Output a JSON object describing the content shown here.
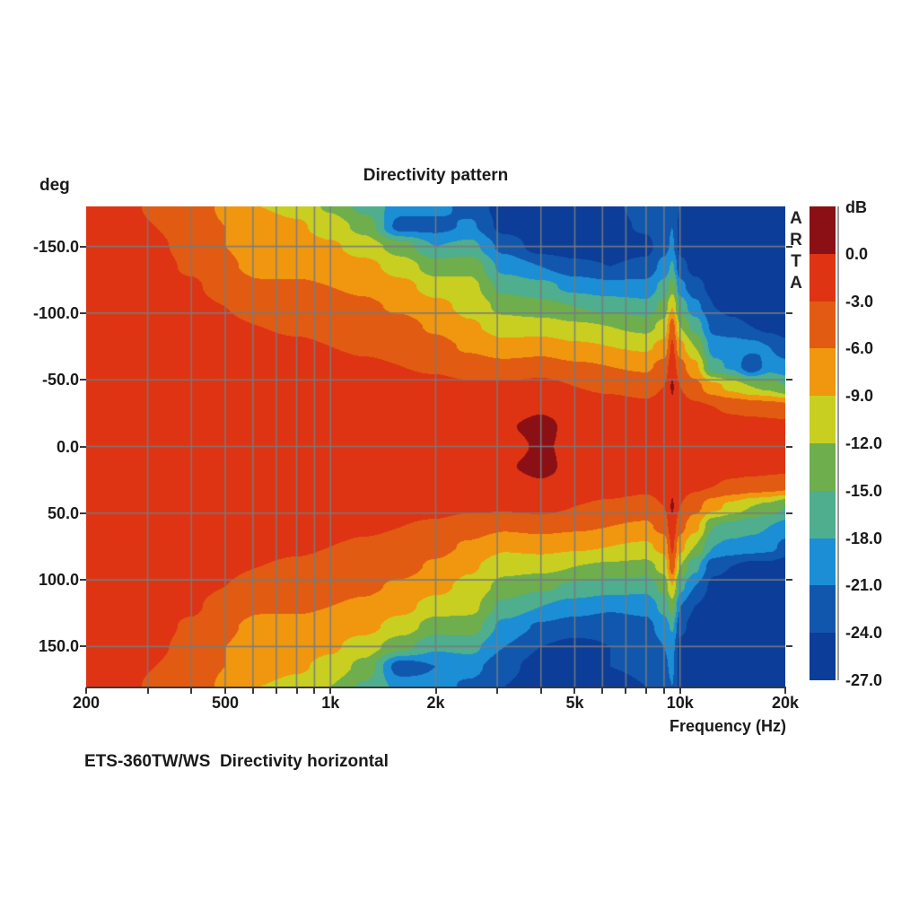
{
  "window": {
    "background": "#ffffff",
    "text_color": "#1a1a1a"
  },
  "chart": {
    "title": "Directivity pattern",
    "caption": "ETS-360TW/WS  Directivity horizontal",
    "watermark_letters": [
      "A",
      "R",
      "T",
      "A"
    ],
    "x_axis": {
      "title": "Frequency (Hz)",
      "scale": "log",
      "min_hz": 200,
      "max_hz": 20000,
      "tick_labels": [
        {
          "label": "200",
          "hz": 200
        },
        {
          "label": "500",
          "hz": 500
        },
        {
          "label": "1k",
          "hz": 1000
        },
        {
          "label": "2k",
          "hz": 2000
        },
        {
          "label": "5k",
          "hz": 5000
        },
        {
          "label": "10k",
          "hz": 10000
        },
        {
          "label": "20k",
          "hz": 20000
        }
      ]
    },
    "y_axis": {
      "unit": "deg",
      "min_deg": -180,
      "max_deg": 180,
      "ticks": [
        {
          "label": "-150.0",
          "deg": -150
        },
        {
          "label": "-100.0",
          "deg": -100
        },
        {
          "label": "-50.0",
          "deg": -50
        },
        {
          "label": "0.0",
          "deg": 0
        },
        {
          "label": "50.0",
          "deg": 50
        },
        {
          "label": "100.0",
          "deg": 100
        },
        {
          "label": "150.0",
          "deg": 150
        }
      ]
    },
    "colorbar": {
      "unit": "dB",
      "tick_labels": [
        "0.0",
        "-3.0",
        "-6.0",
        "-9.0",
        "-12.0",
        "-15.0",
        "-18.0",
        "-21.0",
        "-24.0",
        "-27.0"
      ]
    }
  },
  "chart_data": {
    "type": "heatmap",
    "title": "Directivity pattern",
    "xlabel": "Frequency (Hz)",
    "ylabel": "deg",
    "x_scale": "log",
    "xlim_hz": [
      200,
      20000
    ],
    "ylim_deg": [
      -180,
      180
    ],
    "levels_db": [
      0,
      -3,
      -6,
      -9,
      -12,
      -15,
      -18,
      -21,
      -24,
      -27
    ],
    "band_colors": [
      "#8b1016",
      "#de3413",
      "#e25b12",
      "#f0970f",
      "#c9cf20",
      "#6eae4d",
      "#4eae8d",
      "#1b8ed5",
      "#1157ae",
      "#0b3d99"
    ],
    "grid_color": "#787d80",
    "grid_freqs_hz": [
      300,
      400,
      500,
      600,
      700,
      800,
      900,
      1000,
      2000,
      3000,
      4000,
      5000,
      6000,
      7000,
      8000,
      9000,
      10000
    ],
    "grid_angles_deg": [
      -150,
      -100,
      -50,
      0,
      50,
      100,
      150
    ],
    "freqs_hz": [
      200,
      250,
      315,
      400,
      500,
      630,
      800,
      1000,
      1250,
      1600,
      2000,
      2500,
      3150,
      4000,
      5000,
      6300,
      8000,
      9000,
      9500,
      10000,
      11000,
      12500,
      14000,
      16000,
      18000,
      20000
    ],
    "angles_deg": [
      -180,
      -165,
      -150,
      -135,
      -120,
      -105,
      -90,
      -75,
      -60,
      -45,
      -30,
      -15,
      0,
      15,
      30,
      45,
      60,
      75,
      90,
      105,
      120,
      135,
      150,
      165,
      180
    ],
    "values_db": [
      [
        -1.5,
        -2,
        -3.5,
        -4.5,
        -6.5,
        -9,
        -10,
        -12.5,
        -16,
        -19.5,
        -20,
        -22,
        -25.5,
        -26,
        -26,
        -24.5,
        -23,
        -22,
        -21,
        -24,
        -26,
        -26,
        -26,
        -26,
        -26,
        -26
      ],
      [
        -1.5,
        -1.8,
        -3,
        -4.5,
        -6,
        -7.5,
        -8.5,
        -10.5,
        -13,
        -22.5,
        -22,
        -20.5,
        -25,
        -26,
        -26,
        -25,
        -23.5,
        -22,
        -21,
        -25,
        -26,
        -26,
        -26,
        -26,
        -26,
        -26
      ],
      [
        -1.5,
        -1.6,
        -2.5,
        -4,
        -6,
        -7.5,
        -7.5,
        -8.5,
        -10.5,
        -13.5,
        -18,
        -17,
        -22,
        -25.5,
        -26,
        -26,
        -25,
        -22,
        -20.5,
        -25,
        -26,
        -26,
        -26,
        -26,
        -26,
        -26
      ],
      [
        -1.5,
        -1.5,
        -2,
        -3.5,
        -5.5,
        -7,
        -7,
        -7.5,
        -8,
        -10.5,
        -13.5,
        -13,
        -19,
        -21,
        -23,
        -24,
        -23,
        -20,
        -17.5,
        -23,
        -25,
        -26,
        -26,
        -26,
        -26,
        -26
      ],
      [
        -1.5,
        -1.5,
        -1.8,
        -2.5,
        -4.5,
        -5.5,
        -5.5,
        -6,
        -6.5,
        -8,
        -10.5,
        -11,
        -16,
        -17,
        -19,
        -20,
        -20,
        -17,
        -13.5,
        -20,
        -23,
        -25,
        -26,
        -26,
        -26,
        -26
      ],
      [
        -1.5,
        -1.5,
        -1.5,
        -2,
        -3,
        -4.5,
        -4.5,
        -5,
        -5.5,
        -6.5,
        -8,
        -10,
        -13,
        -14,
        -15,
        -16,
        -17,
        -14,
        -9,
        -16,
        -20,
        -24,
        -25,
        -26,
        -26,
        -26
      ],
      [
        -1.5,
        -1.5,
        -1.5,
        -1.8,
        -2.5,
        -3,
        -3.5,
        -4,
        -4.5,
        -5,
        -6.5,
        -8.5,
        -10.5,
        -10.5,
        -11.5,
        -12,
        -13,
        -11,
        -4.5,
        -12,
        -16,
        -22,
        -23,
        -24,
        -25,
        -25.5
      ],
      [
        -1.5,
        -1.5,
        -1.5,
        -1.5,
        -2,
        -2.2,
        -2.5,
        -3,
        -3.5,
        -4,
        -5,
        -6.5,
        -8,
        -7.5,
        -8.5,
        -9,
        -9.5,
        -8,
        -2.5,
        -8,
        -12,
        -19.5,
        -19.5,
        -20,
        -21,
        -23
      ],
      [
        -1.5,
        -1.5,
        -1.5,
        -1.5,
        -1.5,
        -1.8,
        -2,
        -2,
        -2.5,
        -3,
        -3.5,
        -4.5,
        -5,
        -4.5,
        -5.5,
        -6,
        -6.5,
        -5,
        -1,
        -5,
        -8,
        -17,
        -18.5,
        -23.5,
        -19.5,
        -20
      ],
      [
        -1.5,
        -1.5,
        -1.5,
        -1.5,
        -1.5,
        -1.5,
        -1.5,
        -1.5,
        -1.8,
        -2,
        -2,
        -2.5,
        -2.5,
        -2,
        -3,
        -3.5,
        -4,
        -3,
        0.3,
        -3,
        -5,
        -8,
        -10,
        -12,
        -13,
        -15
      ],
      [
        -1.5,
        -1.5,
        -1.5,
        -1.5,
        -1.5,
        -1.5,
        -1.5,
        -1.5,
        -1.5,
        -1.5,
        -1.5,
        -1.8,
        -1.5,
        -0.5,
        -1.5,
        -2,
        -2.5,
        -2,
        -0.5,
        -2,
        -2.5,
        -3,
        -3.5,
        -4,
        -4.5,
        -5
      ],
      [
        -1.5,
        -1.5,
        -1.5,
        -1.5,
        -1.5,
        -1.5,
        -1.5,
        -1.5,
        -1.5,
        -1.5,
        -1.5,
        -1.5,
        -0.3,
        0.9,
        -1,
        -1.5,
        -1.5,
        -1.5,
        -1,
        -1.5,
        -1.5,
        -1.8,
        -2,
        -2,
        -2,
        -2.2
      ],
      [
        -1.5,
        -1.5,
        -1.5,
        -1.5,
        -1.5,
        -1.5,
        -1.5,
        -1.5,
        -1.5,
        -1.5,
        -1.5,
        -1.5,
        -1.2,
        0.4,
        -0.8,
        -1.2,
        -1.2,
        -1.2,
        -0.8,
        -1.2,
        -1.2,
        -1.5,
        -1.5,
        -1.5,
        -1.5,
        -1.8
      ],
      [
        -1.5,
        -1.5,
        -1.5,
        -1.5,
        -1.5,
        -1.5,
        -1.5,
        -1.5,
        -1.5,
        -1.5,
        -1.5,
        -1.5,
        -0.3,
        0.9,
        -1,
        -1.5,
        -1.5,
        -1.5,
        -1,
        -1.5,
        -1.5,
        -1.8,
        -2,
        -2,
        -2,
        -2.2
      ],
      [
        -1.5,
        -1.5,
        -1.5,
        -1.5,
        -1.5,
        -1.5,
        -1.5,
        -1.5,
        -1.5,
        -1.5,
        -1.5,
        -1.8,
        -1.5,
        -0.5,
        -1.5,
        -2,
        -2.5,
        -2,
        -0.5,
        -2,
        -2.5,
        -3,
        -3.5,
        -4,
        -4.5,
        -5
      ],
      [
        -1.5,
        -1.5,
        -1.5,
        -1.5,
        -1.5,
        -1.5,
        -1.5,
        -1.5,
        -1.8,
        -2,
        -2,
        -2.5,
        -2.5,
        -2,
        -3,
        -3.5,
        -4,
        -3,
        0.3,
        -3,
        -5,
        -8,
        -10,
        -12,
        -13,
        -15
      ],
      [
        -1.5,
        -1.5,
        -1.5,
        -1.5,
        -1.5,
        -1.8,
        -2,
        -2,
        -2.5,
        -3,
        -3.5,
        -4.5,
        -5.5,
        -5,
        -5.5,
        -6,
        -6.5,
        -5,
        -1,
        -5,
        -8,
        -15,
        -16,
        -17,
        -18,
        -19
      ],
      [
        -1.5,
        -1.5,
        -1.5,
        -1.5,
        -2,
        -2.2,
        -2.5,
        -3,
        -3.5,
        -4,
        -5,
        -6.5,
        -8.5,
        -8,
        -8.5,
        -9,
        -9.5,
        -8,
        -2.5,
        -8,
        -12,
        -18,
        -19,
        -19.5,
        -20,
        -22
      ],
      [
        -1.5,
        -1.5,
        -1.5,
        -1.8,
        -2.5,
        -3,
        -3.5,
        -4,
        -4.5,
        -5,
        -6.5,
        -8.5,
        -11,
        -11,
        -12,
        -12.5,
        -13,
        -11,
        -4.5,
        -12,
        -17,
        -23,
        -24,
        -25,
        -25,
        -25.5
      ],
      [
        -1.5,
        -1.5,
        -1.5,
        -2,
        -3,
        -4.5,
        -4.5,
        -5,
        -5.5,
        -6.5,
        -8,
        -10,
        -13,
        -14.5,
        -15.5,
        -16.5,
        -17,
        -14,
        -9,
        -17,
        -21,
        -25,
        -25.5,
        -26,
        -26,
        -26
      ],
      [
        -1.5,
        -1.5,
        -1.8,
        -2.5,
        -4.5,
        -5.5,
        -5.5,
        -6,
        -6.5,
        -8,
        -10.5,
        -11,
        -16,
        -18,
        -19.5,
        -20.5,
        -20,
        -17,
        -13.5,
        -21,
        -24,
        -26,
        -26,
        -26,
        -26,
        -26
      ],
      [
        -1.5,
        -1.5,
        -2,
        -3.5,
        -5.5,
        -7,
        -7,
        -7.5,
        -8,
        -10.5,
        -13.5,
        -13.5,
        -19,
        -21.5,
        -22.5,
        -23,
        -22,
        -19.5,
        -17.5,
        -23,
        -25.5,
        -26,
        -26,
        -26,
        -26,
        -26
      ],
      [
        -1.5,
        -1.6,
        -2.5,
        -4,
        -6,
        -7.5,
        -7.5,
        -8.5,
        -10.5,
        -14,
        -17.5,
        -17,
        -21,
        -24,
        -25,
        -24,
        -23,
        -21,
        -20,
        -25,
        -26,
        -26,
        -26,
        -26,
        -26,
        -26
      ],
      [
        -1.5,
        -1.8,
        -3,
        -4.5,
        -6,
        -7.5,
        -8.5,
        -10,
        -13,
        -23,
        -21,
        -20,
        -23,
        -25.5,
        -25.5,
        -24,
        -23.5,
        -21.5,
        -20.5,
        -25,
        -26,
        -26,
        -26,
        -26,
        -26,
        -26
      ],
      [
        -1.5,
        -2,
        -3.5,
        -4.5,
        -6.5,
        -9,
        -10,
        -12,
        -15.5,
        -19,
        -20,
        -21.5,
        -24,
        -26,
        -26,
        -25,
        -24,
        -22,
        -21,
        -25,
        -26,
        -26,
        -26,
        -26,
        -26,
        -26
      ]
    ]
  }
}
